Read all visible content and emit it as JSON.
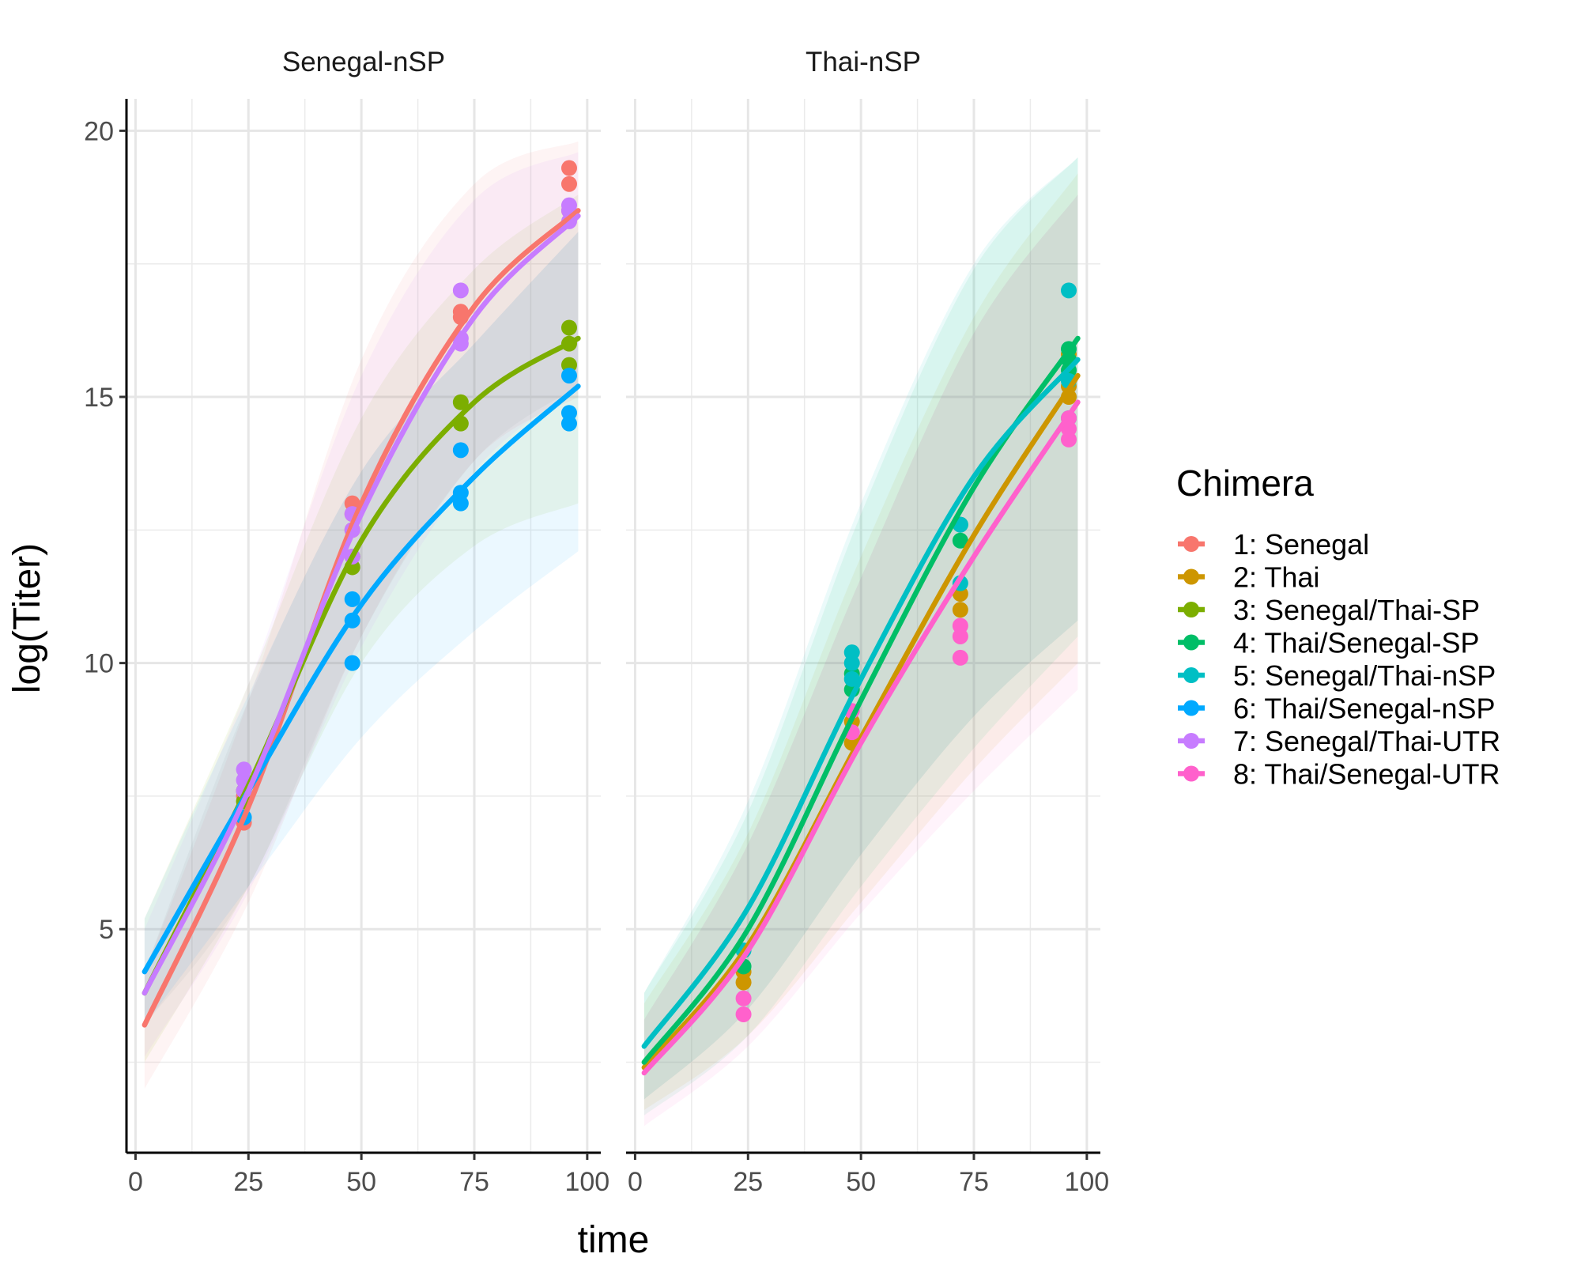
{
  "chart_data": {
    "type": "scatter",
    "xlabel": "time",
    "ylabel": "log(Titer)",
    "xlim": [
      -2,
      103
    ],
    "ylim": [
      0.8,
      20.6
    ],
    "x_ticks": [
      0,
      25,
      50,
      75,
      100
    ],
    "y_ticks": [
      5,
      10,
      15,
      20
    ],
    "grid": true,
    "legend": {
      "title": "Chimera",
      "position": "right",
      "entries": [
        {
          "key": "s1",
          "label": "1: Senegal",
          "color": "#F8766D"
        },
        {
          "key": "s2",
          "label": "2: Thai",
          "color": "#CD9600"
        },
        {
          "key": "s3",
          "label": "3: Senegal/Thai-SP",
          "color": "#7CAE00"
        },
        {
          "key": "s4",
          "label": "4: Thai/Senegal-SP",
          "color": "#00BE67"
        },
        {
          "key": "s5",
          "label": "5: Senegal/Thai-nSP",
          "color": "#00BFC4"
        },
        {
          "key": "s6",
          "label": "6: Thai/Senegal-nSP",
          "color": "#00A9FF"
        },
        {
          "key": "s7",
          "label": "7: Senegal/Thai-UTR",
          "color": "#C77CFF"
        },
        {
          "key": "s8",
          "label": "8: Thai/Senegal-UTR",
          "color": "#FF61CC"
        }
      ]
    },
    "panels": [
      {
        "title": "Senegal-nSP",
        "series": [
          {
            "key": "s1",
            "points": [
              [
                24,
                7.0
              ],
              [
                24,
                7.5
              ],
              [
                48,
                12.5
              ],
              [
                48,
                12.8
              ],
              [
                48,
                13.0
              ],
              [
                72,
                16.5
              ],
              [
                72,
                16.6
              ],
              [
                96,
                19.0
              ],
              [
                96,
                19.3
              ],
              [
                96,
                18.5
              ]
            ],
            "fit": [
              [
                2,
                3.2
              ],
              [
                25,
                7.3
              ],
              [
                50,
                13.0
              ],
              [
                75,
                16.7
              ],
              [
                98,
                18.5
              ]
            ],
            "band": [
              [
                2,
                2.0,
                4.2
              ],
              [
                25,
                5.5,
                9.3
              ],
              [
                50,
                10.5,
                15.7
              ],
              [
                75,
                13.8,
                19.0
              ],
              [
                98,
                15.0,
                19.8
              ]
            ]
          },
          {
            "key": "s3",
            "points": [
              [
                24,
                7.6
              ],
              [
                24,
                7.4
              ],
              [
                48,
                11.8
              ],
              [
                48,
                12.0
              ],
              [
                72,
                14.5
              ],
              [
                72,
                14.9
              ],
              [
                96,
                15.6
              ],
              [
                96,
                16.0
              ],
              [
                96,
                16.3
              ]
            ],
            "fit": [
              [
                2,
                3.8
              ],
              [
                25,
                7.7
              ],
              [
                50,
                12.3
              ],
              [
                75,
                14.9
              ],
              [
                98,
                16.1
              ]
            ],
            "band": [
              [
                2,
                2.5,
                5.2
              ],
              [
                25,
                5.8,
                9.6
              ],
              [
                50,
                10.0,
                14.6
              ],
              [
                75,
                12.2,
                17.4
              ],
              [
                98,
                13.0,
                18.8
              ]
            ]
          },
          {
            "key": "s6",
            "points": [
              [
                24,
                7.1
              ],
              [
                48,
                10.0
              ],
              [
                48,
                10.8
              ],
              [
                48,
                11.2
              ],
              [
                72,
                13.0
              ],
              [
                72,
                13.2
              ],
              [
                72,
                14.0
              ],
              [
                96,
                14.5
              ],
              [
                96,
                14.7
              ],
              [
                96,
                15.4
              ]
            ],
            "fit": [
              [
                2,
                4.2
              ],
              [
                25,
                7.6
              ],
              [
                50,
                11.1
              ],
              [
                75,
                13.5
              ],
              [
                98,
                15.2
              ]
            ],
            "band": [
              [
                2,
                3.2,
                5.2
              ],
              [
                25,
                5.8,
                9.4
              ],
              [
                50,
                8.6,
                13.6
              ],
              [
                75,
                10.6,
                16.0
              ],
              [
                98,
                12.1,
                18.1
              ]
            ]
          },
          {
            "key": "s7",
            "points": [
              [
                24,
                7.6
              ],
              [
                24,
                7.8
              ],
              [
                24,
                8.0
              ],
              [
                48,
                12.0
              ],
              [
                48,
                12.5
              ],
              [
                48,
                12.8
              ],
              [
                72,
                16.0
              ],
              [
                72,
                16.1
              ],
              [
                72,
                17.0
              ],
              [
                96,
                18.3
              ],
              [
                96,
                18.5
              ],
              [
                96,
                18.6
              ]
            ],
            "fit": [
              [
                2,
                3.8
              ],
              [
                25,
                7.6
              ],
              [
                50,
                12.8
              ],
              [
                75,
                16.5
              ],
              [
                98,
                18.4
              ]
            ],
            "band": [
              [
                2,
                2.6,
                5.0
              ],
              [
                25,
                5.7,
                9.6
              ],
              [
                50,
                10.3,
                15.4
              ],
              [
                75,
                13.6,
                18.7
              ],
              [
                98,
                15.2,
                19.6
              ]
            ]
          }
        ]
      },
      {
        "title": "Thai-nSP",
        "series": [
          {
            "key": "s2",
            "points": [
              [
                24,
                4.0
              ],
              [
                24,
                4.2
              ],
              [
                48,
                8.5
              ],
              [
                48,
                8.9
              ],
              [
                72,
                11.0
              ],
              [
                72,
                11.3
              ],
              [
                96,
                15.0
              ],
              [
                96,
                15.2
              ],
              [
                96,
                15.8
              ]
            ],
            "fit": [
              [
                2,
                2.4
              ],
              [
                25,
                4.7
              ],
              [
                50,
                8.6
              ],
              [
                75,
                12.4
              ],
              [
                98,
                15.4
              ]
            ],
            "band": [
              [
                2,
                1.6,
                3.6
              ],
              [
                25,
                3.0,
                6.8
              ],
              [
                50,
                5.5,
                12.0
              ],
              [
                75,
                8.0,
                16.5
              ],
              [
                98,
                10.0,
                19.2
              ]
            ]
          },
          {
            "key": "s4",
            "points": [
              [
                24,
                4.3
              ],
              [
                48,
                9.5
              ],
              [
                48,
                9.8
              ],
              [
                72,
                12.3
              ],
              [
                72,
                12.6
              ],
              [
                96,
                15.7
              ],
              [
                96,
                15.9
              ],
              [
                96,
                15.5
              ]
            ],
            "fit": [
              [
                2,
                2.5
              ],
              [
                25,
                5.0
              ],
              [
                50,
                9.3
              ],
              [
                75,
                13.3
              ],
              [
                98,
                16.1
              ]
            ],
            "band": [
              [
                2,
                1.5,
                3.8
              ],
              [
                25,
                3.0,
                7.2
              ],
              [
                50,
                5.8,
                12.8
              ],
              [
                75,
                8.4,
                17.4
              ],
              [
                98,
                10.5,
                19.5
              ]
            ]
          },
          {
            "key": "s5",
            "points": [
              [
                24,
                4.6
              ],
              [
                48,
                9.7
              ],
              [
                48,
                10.0
              ],
              [
                48,
                10.2
              ],
              [
                72,
                11.5
              ],
              [
                72,
                12.6
              ],
              [
                96,
                14.6
              ],
              [
                96,
                17.0
              ],
              [
                96,
                15.3
              ]
            ],
            "fit": [
              [
                2,
                2.8
              ],
              [
                25,
                5.4
              ],
              [
                50,
                9.7
              ],
              [
                75,
                13.5
              ],
              [
                98,
                15.7
              ]
            ],
            "band": [
              [
                2,
                1.8,
                3.8
              ],
              [
                25,
                3.5,
                7.4
              ],
              [
                50,
                6.4,
                13.0
              ],
              [
                75,
                9.0,
                17.5
              ],
              [
                98,
                10.8,
                19.5
              ]
            ]
          },
          {
            "key": "s8",
            "points": [
              [
                24,
                3.4
              ],
              [
                24,
                3.7
              ],
              [
                48,
                8.7
              ],
              [
                48,
                9.1
              ],
              [
                72,
                10.1
              ],
              [
                72,
                10.5
              ],
              [
                72,
                10.7
              ],
              [
                96,
                14.2
              ],
              [
                96,
                14.4
              ],
              [
                96,
                14.6
              ]
            ],
            "fit": [
              [
                2,
                2.3
              ],
              [
                25,
                4.6
              ],
              [
                50,
                8.5
              ],
              [
                75,
                12.0
              ],
              [
                98,
                14.9
              ]
            ],
            "band": [
              [
                2,
                1.3,
                3.3
              ],
              [
                25,
                2.8,
                6.6
              ],
              [
                50,
                5.3,
                11.6
              ],
              [
                75,
                7.6,
                16.2
              ],
              [
                98,
                9.5,
                18.8
              ]
            ]
          }
        ]
      }
    ]
  }
}
